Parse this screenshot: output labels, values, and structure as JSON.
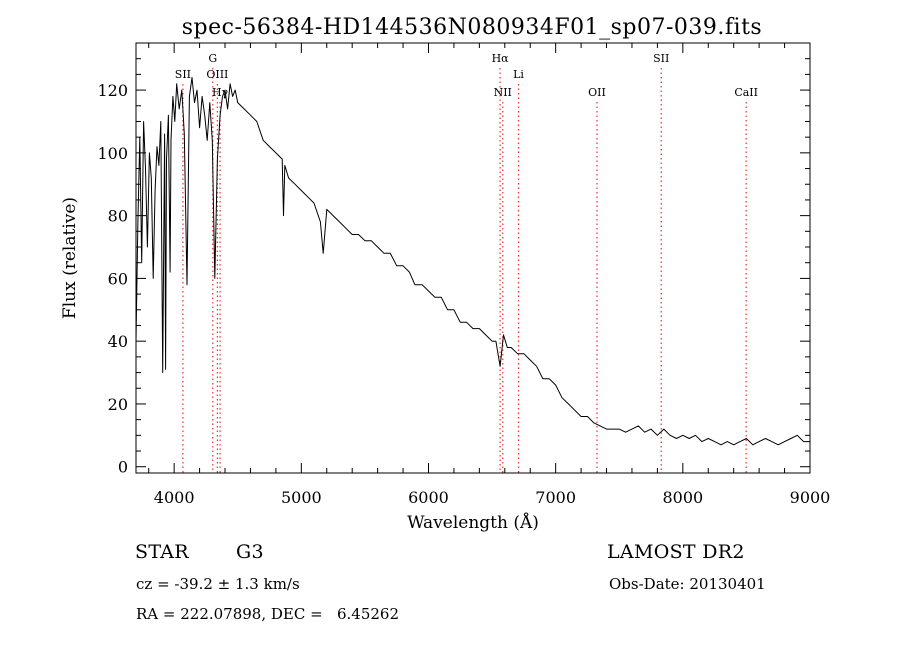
{
  "title": "spec-56384-HD144536N080934F01_sp07-039.fits",
  "chart_data": {
    "type": "line",
    "xlabel": "Wavelength (Å)",
    "ylabel": "Flux (relative)",
    "xlim": [
      3700,
      9000
    ],
    "ylim": [
      -2,
      135
    ],
    "xticks": [
      4000,
      5000,
      6000,
      7000,
      8000,
      9000
    ],
    "yticks": [
      0,
      20,
      40,
      60,
      80,
      100,
      120
    ],
    "grid": false,
    "line_color": "#000000",
    "marker_color": "#e8332f",
    "series": [
      {
        "x": [
          3700,
          3715,
          3730,
          3745,
          3760,
          3775,
          3790,
          3805,
          3820,
          3835,
          3850,
          3865,
          3880,
          3895,
          3910,
          3925,
          3933,
          3940,
          3955,
          3968,
          3975,
          3990,
          4005,
          4020,
          4040,
          4060,
          4080,
          4101,
          4120,
          4140,
          4160,
          4180,
          4200,
          4220,
          4240,
          4260,
          4280,
          4300,
          4320,
          4340,
          4361,
          4380,
          4400,
          4420,
          4440,
          4460,
          4480,
          4500,
          4550,
          4600,
          4650,
          4700,
          4750,
          4800,
          4850,
          4860,
          4870,
          4900,
          4950,
          5000,
          5050,
          5100,
          5150,
          5172,
          5200,
          5250,
          5300,
          5350,
          5400,
          5450,
          5500,
          5550,
          5600,
          5650,
          5700,
          5750,
          5800,
          5850,
          5893,
          5950,
          6000,
          6050,
          6100,
          6150,
          6200,
          6250,
          6300,
          6350,
          6400,
          6450,
          6500,
          6530,
          6563,
          6590,
          6620,
          6650,
          6700,
          6750,
          6800,
          6850,
          6900,
          6950,
          7000,
          7050,
          7100,
          7150,
          7200,
          7250,
          7300,
          7350,
          7400,
          7450,
          7500,
          7550,
          7600,
          7650,
          7700,
          7750,
          7800,
          7850,
          7900,
          7950,
          8000,
          8050,
          8100,
          8150,
          8200,
          8250,
          8300,
          8350,
          8400,
          8450,
          8500,
          8550,
          8600,
          8650,
          8700,
          8750,
          8800,
          8850,
          8900,
          8950,
          9000
        ],
        "y": [
          40,
          78,
          105,
          65,
          110,
          95,
          70,
          100,
          92,
          60,
          88,
          102,
          96,
          110,
          30,
          106,
          31,
          98,
          112,
          62,
          104,
          118,
          110,
          122,
          114,
          120,
          106,
          58,
          118,
          124,
          116,
          120,
          108,
          118,
          112,
          104,
          116,
          104,
          60,
          98,
          112,
          118,
          120,
          114,
          122,
          118,
          120,
          116,
          114,
          112,
          110,
          104,
          102,
          100,
          98,
          80,
          96,
          92,
          90,
          88,
          86,
          84,
          78,
          68,
          82,
          80,
          78,
          76,
          74,
          74,
          72,
          72,
          70,
          68,
          68,
          64,
          64,
          62,
          58,
          58,
          56,
          54,
          54,
          50,
          50,
          46,
          46,
          44,
          44,
          42,
          40,
          40,
          32,
          42,
          38,
          38,
          36,
          36,
          34,
          32,
          28,
          28,
          26,
          22,
          20,
          18,
          16,
          16,
          14,
          13,
          12,
          12,
          12,
          11,
          12,
          13,
          11,
          12,
          10,
          12,
          10,
          9,
          10,
          9,
          10,
          8,
          9,
          8,
          7,
          8,
          7,
          8,
          9,
          7,
          8,
          9,
          8,
          7,
          8,
          9,
          10,
          8,
          8
        ]
      }
    ],
    "line_markers": [
      {
        "label": "SII",
        "x": 4069,
        "row": 2
      },
      {
        "label": "G",
        "x": 4304,
        "row": 1
      },
      {
        "label": "OIII",
        "x": 4340,
        "row": 2
      },
      {
        "label": "Hγ",
        "x": 4361,
        "row": 3
      },
      {
        "label": "Hα",
        "x": 6563,
        "row": 1
      },
      {
        "label": "NII",
        "x": 6584,
        "row": 3
      },
      {
        "label": "Li",
        "x": 6708,
        "row": 2
      },
      {
        "label": "OII",
        "x": 7325,
        "row": 3
      },
      {
        "label": "SII",
        "x": 7830,
        "row": 1
      },
      {
        "label": "CaII",
        "x": 8498,
        "row": 3
      }
    ]
  },
  "info": {
    "object": "STAR",
    "class": "G3",
    "survey": "LAMOST DR2",
    "cz": "cz = -39.2 ± 1.3 km/s",
    "obs_date": "Obs-Date: 20130401",
    "radec": "RA = 222.07898, DEC =   6.45262"
  }
}
